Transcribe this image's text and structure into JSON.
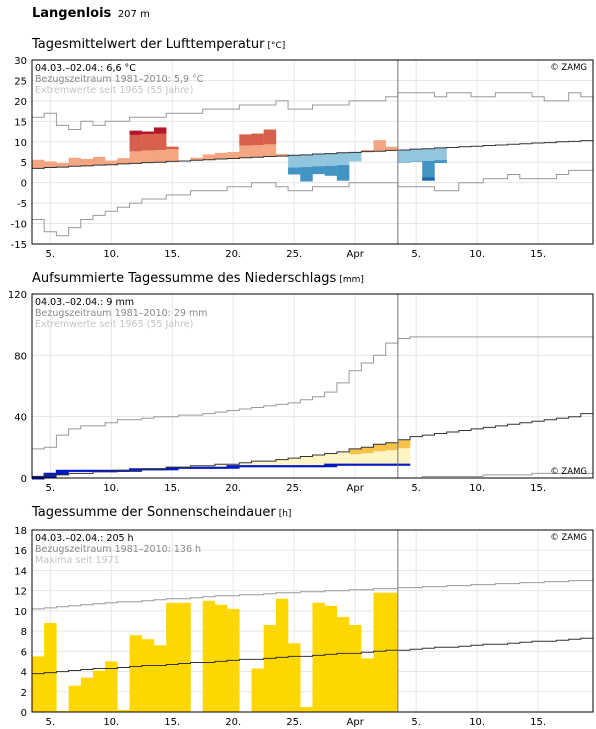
{
  "station": {
    "name": "Langenlois",
    "elevation": "207 m"
  },
  "x_tick_labels": [
    {
      "day": 5,
      "label": "5."
    },
    {
      "day": 10,
      "label": "10."
    },
    {
      "day": 15,
      "label": "15."
    },
    {
      "day": 20,
      "label": "20."
    },
    {
      "day": 25,
      "label": "25."
    },
    {
      "day": 30,
      "label": "Apr"
    },
    {
      "day": 35,
      "label": "5."
    },
    {
      "day": 40,
      "label": "10."
    },
    {
      "day": 45,
      "label": "15."
    }
  ],
  "chart_data": [
    {
      "id": "temperature",
      "type": "bar",
      "title": "Tagesmittelwert der Lufttemperatur",
      "unit": "[°C]",
      "copyright": "© ZAMG",
      "legend": [
        "04.03.–02.04.: 6,6 °C",
        "Bezugszeitraum 1981–2010: 5,9 °C",
        "Extremwerte seit 1965 (55 Jahre)"
      ],
      "x_start": "04.03.",
      "x_end": "18.04.",
      "today_index": 30,
      "ylim": [
        -15,
        30
      ],
      "yticks": [
        -15,
        -10,
        -5,
        0,
        5,
        10,
        15,
        20,
        25,
        30
      ],
      "values": [
        5.6,
        5.2,
        4.8,
        6.1,
        5.8,
        6.3,
        5.4,
        6.0,
        12.7,
        12.5,
        13.5,
        8.8,
        5.3,
        6.1,
        6.9,
        7.3,
        7.5,
        11.8,
        12.0,
        13.0,
        7.0,
        2.0,
        0.3,
        2.1,
        1.7,
        0.5,
        5.2,
        8.0,
        10.4,
        8.8,
        4.9,
        5.1,
        0.5,
        4.8
      ],
      "normal": [
        3.5,
        3.7,
        3.8,
        4.0,
        4.1,
        4.3,
        4.4,
        4.6,
        4.7,
        4.9,
        5.0,
        5.2,
        5.3,
        5.5,
        5.6,
        5.8,
        5.9,
        6.1,
        6.2,
        6.4,
        6.5,
        6.7,
        6.8,
        7.0,
        7.1,
        7.3,
        7.4,
        7.6,
        7.7,
        7.9,
        8.0,
        8.2,
        8.3,
        8.5,
        8.6,
        8.8,
        8.9,
        9.1,
        9.2,
        9.4,
        9.5,
        9.7,
        9.8,
        10.0,
        10.1,
        10.3
      ],
      "max": [
        16,
        17,
        14,
        13,
        15,
        14,
        15,
        15,
        16,
        16,
        16,
        17,
        17,
        17,
        18,
        18,
        18,
        19,
        19,
        19,
        20,
        18,
        18,
        19,
        19,
        19,
        20,
        20,
        20,
        21,
        22,
        22,
        22,
        21,
        22,
        22,
        21,
        21,
        22,
        22,
        22,
        21,
        20,
        20,
        22,
        21
      ],
      "min": [
        -9,
        -12,
        -13,
        -11,
        -9,
        -8,
        -7,
        -6,
        -5,
        -4,
        -4,
        -3,
        -3,
        -2,
        -2,
        -2,
        -1,
        -1,
        0,
        0,
        -1,
        -2,
        -2,
        -1,
        -1,
        -1,
        0,
        0,
        0,
        0,
        -1,
        -1,
        -1,
        -2,
        -2,
        0,
        0,
        1,
        1,
        2,
        1,
        1,
        1,
        2,
        3,
        3
      ]
    },
    {
      "id": "precipitation",
      "type": "area",
      "title": "Aufsummierte Tagessumme des Niederschlags",
      "unit": "[mm]",
      "copyright": "© ZAMG",
      "legend": [
        "04.03.–02.04.: 9 mm",
        "Bezugszeitraum 1981–2010: 29 mm",
        "Extremwerte seit 1965 (55 Jahre)"
      ],
      "today_index": 30,
      "ylim": [
        0,
        120
      ],
      "yticks": [
        0,
        40,
        80,
        120
      ],
      "values": [
        1,
        3,
        5,
        5,
        5,
        5,
        5,
        5,
        6,
        6,
        6,
        7,
        7,
        7,
        7,
        7,
        8,
        8,
        8,
        8,
        8,
        8,
        8,
        8,
        9,
        9,
        9,
        9,
        9,
        9,
        9
      ],
      "normal": [
        1,
        2,
        2,
        3,
        3,
        4,
        4,
        5,
        5,
        6,
        6,
        7,
        7,
        8,
        8,
        9,
        9,
        10,
        11,
        11,
        12,
        13,
        14,
        15,
        16,
        17,
        19,
        20,
        22,
        23,
        25,
        27,
        28,
        29,
        30,
        31,
        32,
        33,
        34,
        35,
        36,
        37,
        38,
        39,
        40,
        42
      ],
      "max": [
        19,
        20,
        28,
        32,
        34,
        34,
        36,
        38,
        38,
        39,
        40,
        40,
        41,
        41,
        42,
        43,
        44,
        45,
        46,
        47,
        48,
        49,
        51,
        53,
        56,
        62,
        70,
        75,
        80,
        88,
        91,
        92,
        92,
        92,
        92,
        92,
        92,
        92,
        92,
        92,
        92,
        92,
        92,
        92,
        92,
        92
      ],
      "min": [
        0,
        0,
        0,
        0,
        0,
        0,
        0,
        0,
        0,
        0,
        0,
        0,
        0,
        0,
        0,
        0,
        0,
        0,
        0,
        0,
        0,
        0,
        0,
        0,
        0,
        0,
        0,
        0,
        0,
        0,
        0,
        0,
        1,
        1,
        1,
        1,
        1,
        2,
        2,
        2,
        2,
        3,
        3,
        3,
        3,
        3
      ]
    },
    {
      "id": "sunshine",
      "type": "bar",
      "title": "Tagessumme der Sonnenscheindauer",
      "unit": "[h]",
      "copyright": "© ZAMG",
      "legend": [
        "04.03.–02.04.: 205 h",
        "Bezugszeitraum 1981–2010: 136 h",
        "Maxima seit 1971"
      ],
      "today_index": 30,
      "ylim": [
        0,
        18
      ],
      "yticks": [
        0,
        2,
        4,
        6,
        8,
        10,
        12,
        14,
        16,
        18
      ],
      "values": [
        5.5,
        8.8,
        0.1,
        2.6,
        3.4,
        4.1,
        5.0,
        0.2,
        7.6,
        7.2,
        6.6,
        10.8,
        10.8,
        0.0,
        11.0,
        10.6,
        10.2,
        0.0,
        4.3,
        8.6,
        11.2,
        6.8,
        0.5,
        10.8,
        10.5,
        9.4,
        8.6,
        5.3,
        11.8,
        11.8
      ],
      "normal": [
        3.8,
        3.9,
        4.0,
        4.1,
        4.2,
        4.3,
        4.3,
        4.4,
        4.5,
        4.6,
        4.6,
        4.7,
        4.8,
        4.9,
        4.9,
        5.0,
        5.1,
        5.2,
        5.2,
        5.3,
        5.4,
        5.5,
        5.5,
        5.6,
        5.7,
        5.8,
        5.8,
        5.9,
        6.0,
        6.1,
        6.1,
        6.2,
        6.3,
        6.4,
        6.4,
        6.5,
        6.6,
        6.7,
        6.7,
        6.8,
        6.9,
        7.0,
        7.0,
        7.1,
        7.2,
        7.3
      ],
      "max": [
        10.2,
        10.3,
        10.4,
        10.5,
        10.6,
        10.7,
        10.8,
        10.9,
        10.9,
        11.0,
        11.1,
        11.2,
        11.2,
        11.3,
        11.4,
        11.5,
        11.5,
        11.6,
        11.6,
        11.7,
        11.8,
        11.8,
        11.9,
        11.9,
        12.0,
        12.0,
        12.1,
        12.1,
        12.2,
        12.2,
        12.3,
        12.3,
        12.4,
        12.4,
        12.5,
        12.5,
        12.6,
        12.6,
        12.7,
        12.7,
        12.8,
        12.8,
        12.9,
        12.9,
        13.0,
        13.0
      ]
    }
  ]
}
